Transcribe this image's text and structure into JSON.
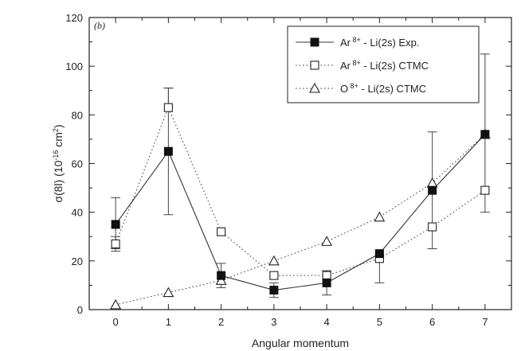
{
  "chart_data": {
    "type": "line",
    "panel_label": "(b)",
    "xlabel": "Angular momentum",
    "ylabel": "σ(8l) (10",
    "ylabel_exp": "-16",
    "ylabel_unit": " cm",
    "ylabel_sq": "2",
    "ylabel_close": ")",
    "xlim": [
      -0.5,
      7.5
    ],
    "ylim": [
      0,
      120
    ],
    "x_ticks": [
      "0",
      "1",
      "2",
      "3",
      "4",
      "5",
      "6",
      "7"
    ],
    "y_ticks": [
      "0",
      "20",
      "40",
      "60",
      "80",
      "100",
      "120"
    ],
    "legend_position": "top-right",
    "x": [
      0,
      1,
      2,
      3,
      4,
      5,
      6,
      7
    ],
    "series": [
      {
        "name": "Ar",
        "name_sup": "8+",
        "name_rest": " - Li(2s) Exp.",
        "marker": "filled-square",
        "line": "solid",
        "values": [
          35,
          65,
          14,
          8,
          11,
          23,
          49,
          72
        ],
        "err_low": [
          10,
          26,
          5,
          3,
          5,
          12,
          24,
          0
        ],
        "err_high": [
          11,
          26,
          5,
          3,
          5,
          0,
          24,
          0
        ]
      },
      {
        "name": "Ar",
        "name_sup": "8+",
        "name_rest": " - Li(2s) CTMC",
        "marker": "open-square",
        "line": "dotted",
        "values": [
          27,
          83,
          32,
          14,
          14,
          21,
          34,
          49
        ],
        "err_low": [
          3,
          0,
          0,
          0,
          0,
          0,
          0,
          9
        ],
        "err_high": [
          3,
          8,
          0,
          0,
          0,
          0,
          0,
          56
        ]
      },
      {
        "name": "O",
        "name_sup": "8+",
        "name_rest": " - Li(2s) CTMC",
        "marker": "open-triangle",
        "line": "dotted",
        "values": [
          2,
          7,
          12,
          20,
          28,
          38,
          52,
          72
        ],
        "err_low": [
          0,
          0,
          0,
          0,
          0,
          0,
          0,
          0
        ],
        "err_high": [
          0,
          0,
          0,
          0,
          0,
          0,
          0,
          0
        ]
      }
    ]
  }
}
